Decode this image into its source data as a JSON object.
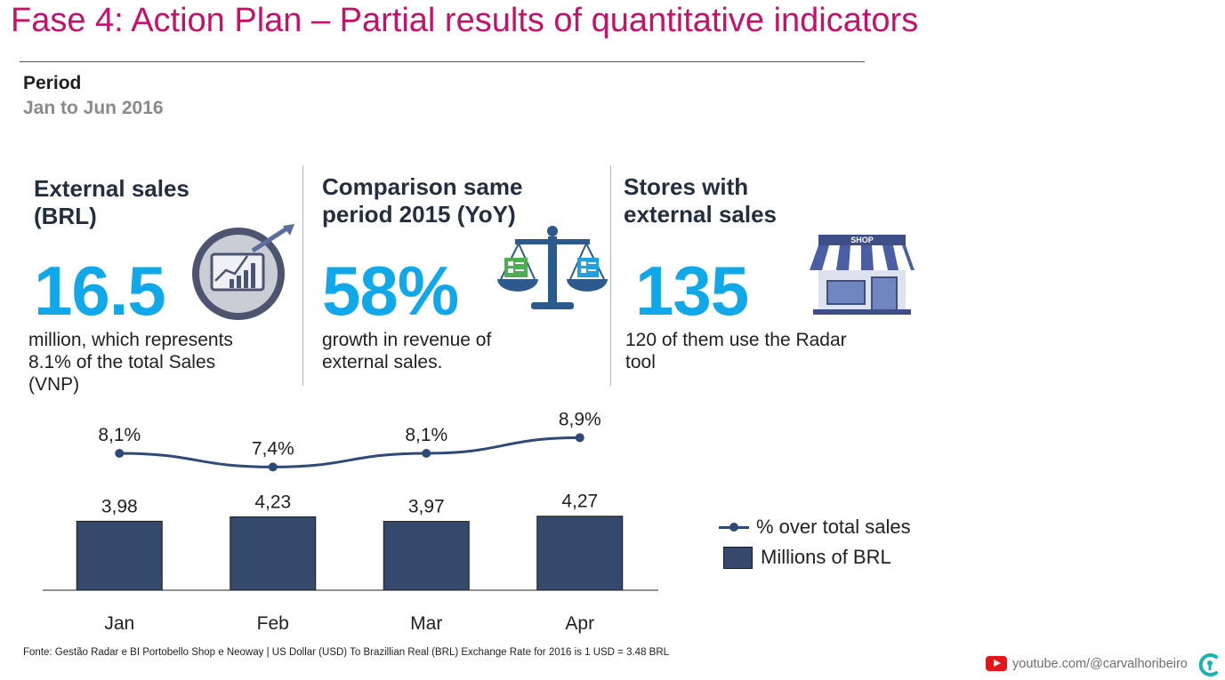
{
  "header": {
    "title": "Fase 4: Action Plan – Partial results of quantitative indicators",
    "period_label": "Period",
    "period_value": "Jan to Jun 2016"
  },
  "kpis": [
    {
      "heading_line1": "External sales",
      "heading_line2": "(BRL)",
      "value": "16.5",
      "desc_line1": "million, which represents",
      "desc_line2": "8.1% of the total Sales",
      "desc_line3": "(VNP)",
      "icon": "growth-chart-icon"
    },
    {
      "heading_line1": "Comparison same",
      "heading_line2": "period 2015 (YoY)",
      "value": "58%",
      "desc_line1": "growth in revenue of",
      "desc_line2": "external sales.",
      "icon": "balance-scale-icon"
    },
    {
      "heading_line1": "Stores with",
      "heading_line2": "external sales",
      "value": "135",
      "desc_line1": "120 of them use the Radar",
      "desc_line2": "tool",
      "icon": "shop-icon",
      "icon_sign": "SHOP"
    }
  ],
  "chart_data": {
    "type": "bar",
    "categories": [
      "Jan",
      "Feb",
      "Mar",
      "Apr"
    ],
    "series": [
      {
        "name": "Millions of BRL",
        "type": "bar",
        "values": [
          3.98,
          4.23,
          3.97,
          4.27
        ],
        "labels": [
          "3,98",
          "4,23",
          "3,97",
          "4,27"
        ],
        "color": "#34496b"
      },
      {
        "name": "% over total sales",
        "type": "line",
        "values": [
          8.1,
          7.4,
          8.1,
          8.9
        ],
        "labels": [
          "8,1%",
          "7,4%",
          "8,1%",
          "8,9%"
        ],
        "color": "#2e4a78"
      }
    ],
    "title": "",
    "xlabel": "",
    "ylabel": "",
    "grid": false,
    "legend_position": "right"
  },
  "footer": {
    "source": "Fonte: Gestão Radar e BI Portobello Shop e Neoway |  US Dollar (USD) To Brazillian Real (BRL) Exchange Rate for 2016  is 1 USD = 3.48 BRL",
    "youtube": "youtube.com/@carvalhoribeiro"
  },
  "colors": {
    "title": "#c8106b",
    "kpi_value": "#10a8e8",
    "heading": "#232f3e",
    "bar": "#34496b",
    "line": "#2e4a78",
    "youtube_red": "#e4161b",
    "brand_teal": "#17b3b0"
  }
}
